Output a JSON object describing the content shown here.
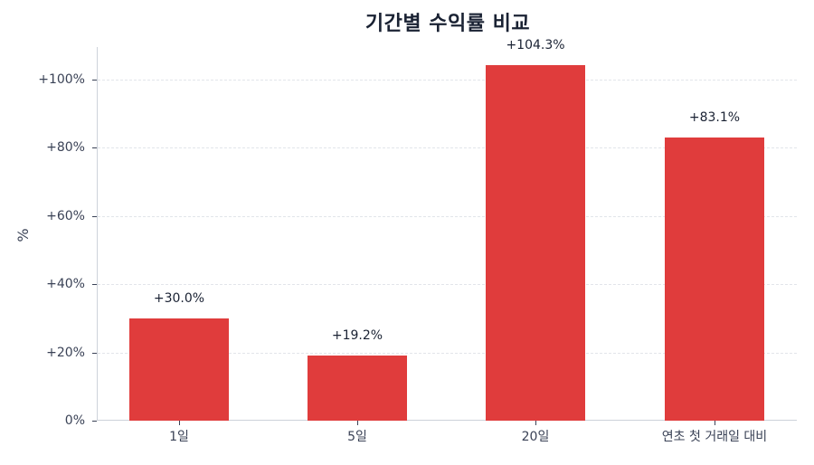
{
  "chart_data": {
    "type": "bar",
    "title": "기간별 수익률 비교",
    "xlabel": "",
    "ylabel": "%",
    "categories": [
      "1일",
      "5일",
      "20일",
      "연초 첫 거래일 대비"
    ],
    "values": [
      30.0,
      19.2,
      104.3,
      83.1
    ],
    "data_labels": [
      "+30.0%",
      "+19.2%",
      "+104.3%",
      "+83.1%"
    ],
    "ylim": [
      0,
      109.5
    ],
    "yticks": [
      0,
      20,
      40,
      60,
      80,
      100
    ],
    "ytick_labels": [
      "0%",
      "+20%",
      "+40%",
      "+60%",
      "+80%",
      "+100%"
    ],
    "grid": "horizontal dashed",
    "legend": null,
    "bar_color": "#e03c3c"
  },
  "title": "기간별 수익률 비교",
  "ylabel": "%",
  "colors": {
    "bar": "#e03c3c",
    "title": "#1a2233",
    "axis_text": "#3a4256",
    "grid": "#e2e5ea",
    "axis_line": "#cdd2da"
  }
}
